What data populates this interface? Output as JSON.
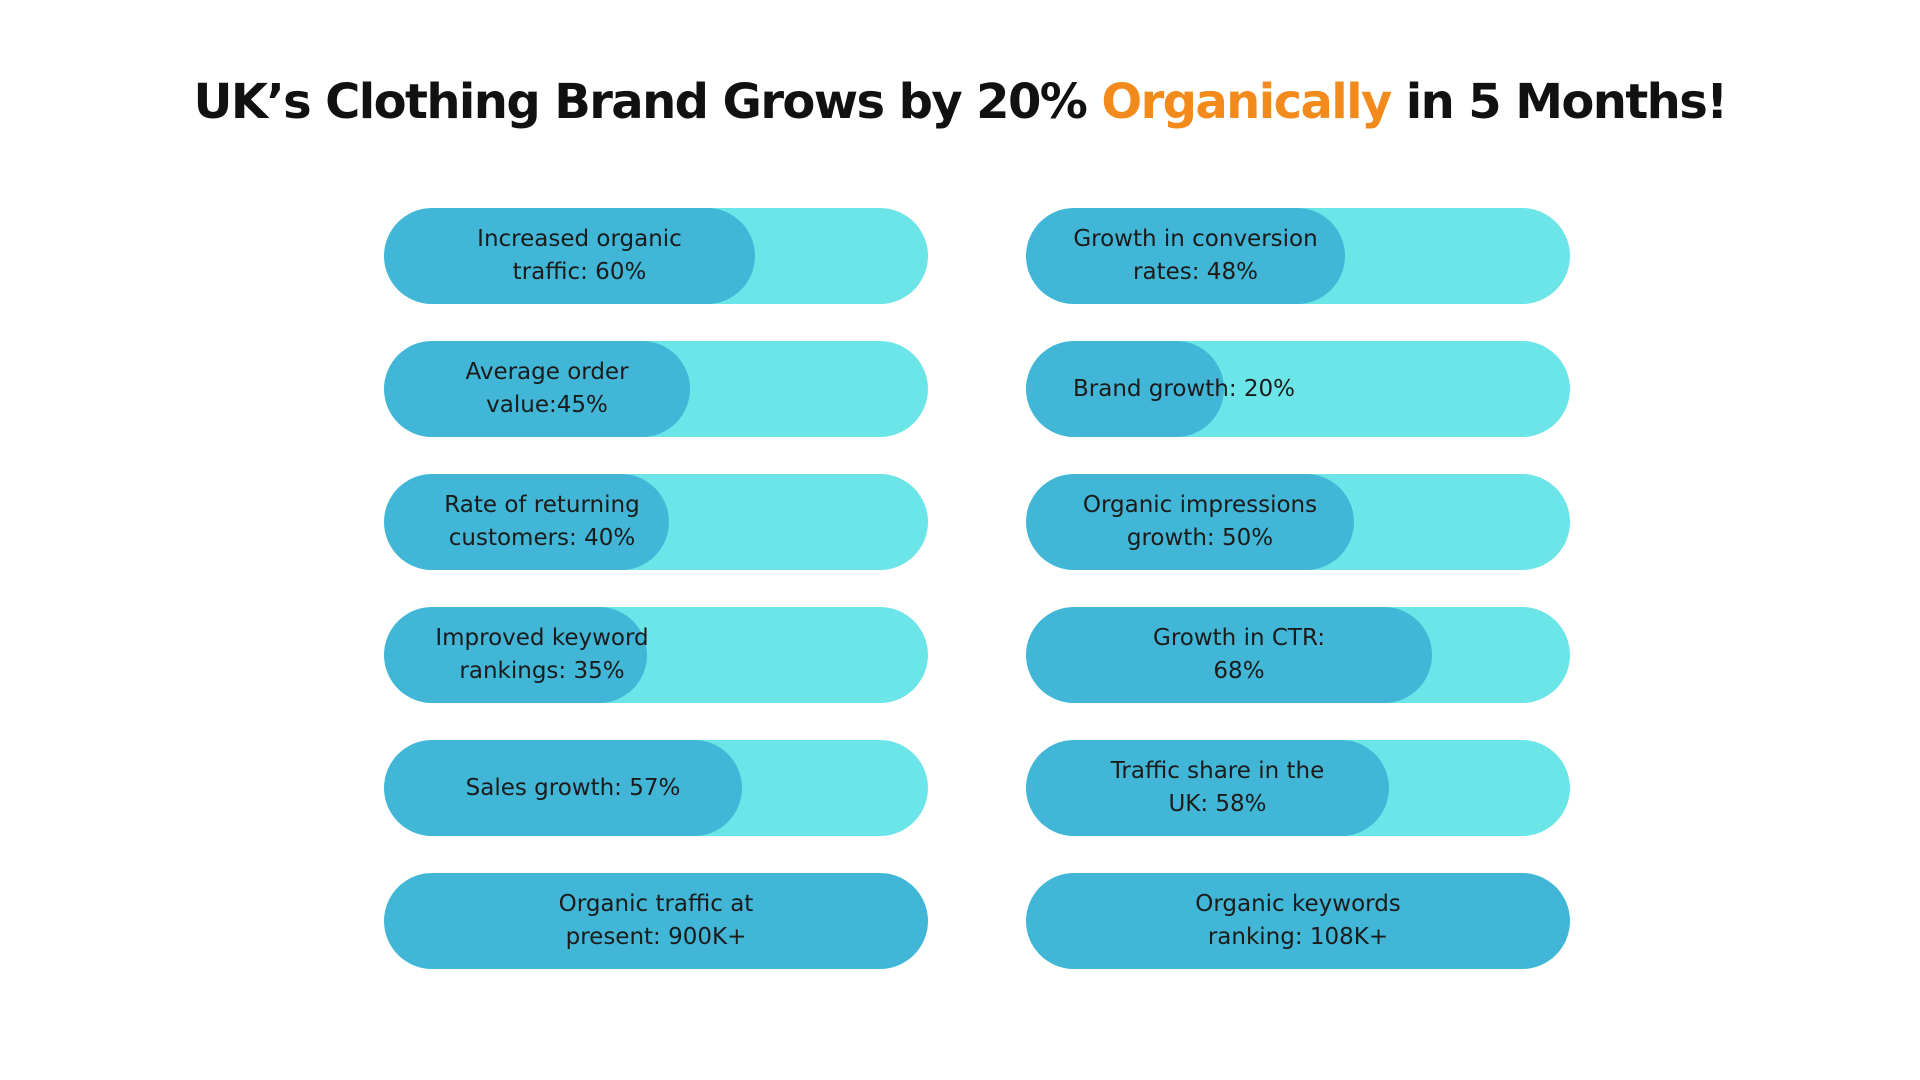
{
  "title": {
    "before": "UK’s Clothing Brand Grows by 20% ",
    "accent": "Organically",
    "after": " in 5 Months!"
  },
  "colors": {
    "track": "#6ce5e8",
    "fill": "#41b6d7",
    "accent": "#f28a1c",
    "text": "#1b1b1b"
  },
  "chart_data": {
    "type": "bar",
    "orientation": "horizontal",
    "unit": "percent",
    "bars": [
      {
        "label": "Increased organic\ntraffic: 60%",
        "value": 60,
        "column": "left"
      },
      {
        "label": "Average order\nvalue:45%",
        "value": 45,
        "column": "left"
      },
      {
        "label": "Rate of returning\ncustomers: 40%",
        "value": 40,
        "column": "left"
      },
      {
        "label": "Improved keyword\nrankings: 35%",
        "value": 35,
        "column": "left"
      },
      {
        "label": "Sales growth: 57%",
        "value": 57,
        "column": "left"
      },
      {
        "label": "Organic traffic at\npresent: 900K+",
        "value": 100,
        "column": "left"
      },
      {
        "label": "Growth in conversion\nrates: 48%",
        "value": 48,
        "column": "right"
      },
      {
        "label": "Brand growth: 20%",
        "value": 20,
        "column": "right"
      },
      {
        "label": "Organic impressions\ngrowth: 50%",
        "value": 50,
        "column": "right"
      },
      {
        "label": "Growth in CTR:\n68%",
        "value": 68,
        "column": "right"
      },
      {
        "label": "Traffic share in the\nUK: 58%",
        "value": 58,
        "column": "right"
      },
      {
        "label": "Organic keywords\nranking: 108K+",
        "value": 100,
        "column": "right"
      }
    ]
  }
}
